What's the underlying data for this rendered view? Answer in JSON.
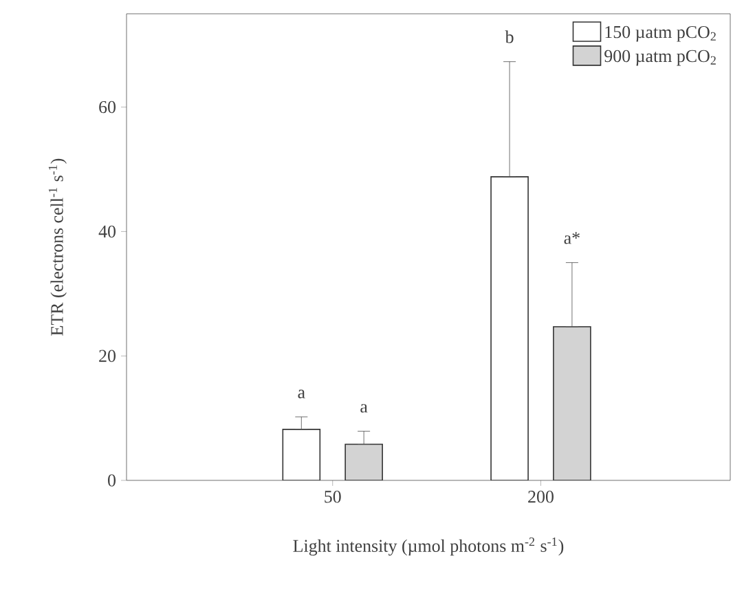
{
  "chart_data": {
    "type": "bar",
    "xlabel": "Light intensity (µmol photons m$^{-2}$ s$^{-1}$)",
    "ylabel": "ETR (electrons cell$^{-1}$ s$^{-1}$)",
    "categories": [
      "50",
      "200"
    ],
    "series": [
      {
        "name": "150 µatm pCO$_{2}$",
        "color": "#ffffff",
        "values": [
          8.2,
          48.8
        ],
        "errors": [
          [
            8.2,
            10.2
          ],
          [
            48.8,
            67.3
          ]
        ]
      },
      {
        "name": "900 µatm pCO$_{2}$",
        "color": "#d3d3d3",
        "values": [
          5.8,
          24.7
        ],
        "errors": [
          [
            5.8,
            7.9
          ],
          [
            24.7,
            35.0
          ]
        ]
      }
    ],
    "ylim": [
      0,
      75
    ],
    "yticks": [
      0,
      20,
      40,
      60
    ],
    "legend": "top right",
    "annotations": [
      "a",
      "a",
      "b",
      "a*"
    ]
  }
}
